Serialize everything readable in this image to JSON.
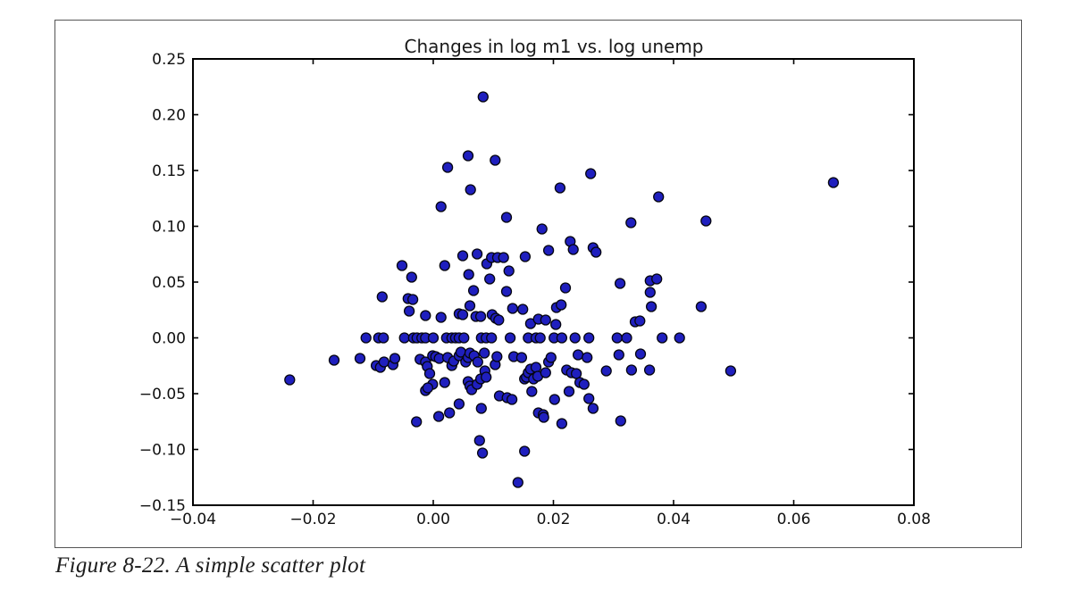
{
  "figure": {
    "caption": "Figure 8-22. A simple scatter plot"
  },
  "chart_data": {
    "type": "scatter",
    "title": "Changes in log m1 vs. log unemp",
    "xlabel": "",
    "ylabel": "",
    "xlim": [
      -0.04,
      0.08
    ],
    "ylim": [
      -0.15,
      0.25
    ],
    "xticks": [
      -0.04,
      -0.02,
      0.0,
      0.02,
      0.04,
      0.06,
      0.08
    ],
    "xtick_labels": [
      "−0.04",
      "−0.02",
      "0.00",
      "0.02",
      "0.04",
      "0.06",
      "0.08"
    ],
    "yticks": [
      0.25,
      0.2,
      0.15,
      0.1,
      0.05,
      0.0,
      -0.05,
      -0.1,
      -0.15
    ],
    "ytick_labels": [
      "0.25",
      "0.20",
      "0.15",
      "0.10",
      "0.05",
      "0.00",
      "−0.05",
      "−0.10",
      "−0.15"
    ],
    "grid": false,
    "legend": null,
    "point_color": "#1f1fbe",
    "point_edge_color": "#050510",
    "point_radius_px": 5.5,
    "points": [
      [
        0.0083,
        0.216
      ],
      [
        0.0058,
        0.1632
      ],
      [
        0.0103,
        0.1592
      ],
      [
        0.0024,
        0.1528
      ],
      [
        0.0262,
        0.1472
      ],
      [
        0.0211,
        0.1344
      ],
      [
        0.0062,
        0.1328
      ],
      [
        0.0375,
        0.1264
      ],
      [
        0.0013,
        0.1176
      ],
      [
        0.0122,
        0.108
      ],
      [
        0.0329,
        0.1032
      ],
      [
        0.0181,
        0.0976
      ],
      [
        0.0666,
        0.1392
      ],
      [
        0.0454,
        0.1048
      ],
      [
        0.0228,
        0.0864
      ],
      [
        0.0233,
        0.0792
      ],
      [
        0.0266,
        0.0808
      ],
      [
        0.0271,
        0.0768
      ],
      [
        0.0192,
        0.0784
      ],
      [
        0.0049,
        0.0736
      ],
      [
        0.0073,
        0.0752
      ],
      [
        0.0089,
        0.0664
      ],
      [
        0.0097,
        0.072
      ],
      [
        0.0107,
        0.072
      ],
      [
        0.0117,
        0.072
      ],
      [
        0.0153,
        0.0728
      ],
      [
        -0.0052,
        0.0648
      ],
      [
        0.0019,
        0.0648
      ],
      [
        0.0059,
        0.0568
      ],
      [
        0.0126,
        0.06
      ],
      [
        -0.0036,
        0.0544
      ],
      [
        0.0094,
        0.0528
      ],
      [
        0.0067,
        0.0424
      ],
      [
        0.0122,
        0.0416
      ],
      [
        -0.0085,
        0.0368
      ],
      [
        -0.0042,
        0.0352
      ],
      [
        -0.0034,
        0.0344
      ],
      [
        0.0311,
        0.0488
      ],
      [
        0.022,
        0.0448
      ],
      [
        0.0132,
        0.0264
      ],
      [
        0.0149,
        0.0256
      ],
      [
        -0.004,
        0.024
      ],
      [
        0.0205,
        0.0272
      ],
      [
        0.0213,
        0.0296
      ],
      [
        -0.0013,
        0.02
      ],
      [
        0.0013,
        0.0184
      ],
      [
        0.0043,
        0.0216
      ],
      [
        0.0049,
        0.0208
      ],
      [
        0.0061,
        0.0288
      ],
      [
        0.0071,
        0.0192
      ],
      [
        0.0079,
        0.0192
      ],
      [
        0.0098,
        0.0208
      ],
      [
        0.0104,
        0.0176
      ],
      [
        0.0109,
        0.016
      ],
      [
        0.0162,
        0.0128
      ],
      [
        0.0175,
        0.0168
      ],
      [
        0.0187,
        0.016
      ],
      [
        0.0204,
        0.012
      ],
      [
        0.0336,
        0.0144
      ],
      [
        0.0344,
        0.0152
      ],
      [
        0.0361,
        0.0512
      ],
      [
        0.0372,
        0.0528
      ],
      [
        0.0361,
        0.0408
      ],
      [
        0.0363,
        0.028
      ],
      [
        0.0446,
        0.028
      ],
      [
        -0.0112,
        0.0
      ],
      [
        -0.0091,
        0.0
      ],
      [
        -0.0083,
        0.0
      ],
      [
        -0.0048,
        0.0
      ],
      [
        -0.0033,
        0.0
      ],
      [
        -0.0027,
        0.0
      ],
      [
        -0.0019,
        0.0
      ],
      [
        -0.0013,
        0.0
      ],
      [
        0.0,
        0.0
      ],
      [
        0.0022,
        0.0
      ],
      [
        0.0031,
        0.0
      ],
      [
        0.0037,
        0.0
      ],
      [
        0.0043,
        0.0
      ],
      [
        0.0051,
        0.0
      ],
      [
        0.008,
        0.0
      ],
      [
        0.0088,
        0.0
      ],
      [
        0.0097,
        0.0
      ],
      [
        0.0128,
        0.0
      ],
      [
        0.0158,
        0.0
      ],
      [
        0.0171,
        0.0
      ],
      [
        0.0178,
        0.0
      ],
      [
        0.0201,
        0.0
      ],
      [
        0.0214,
        0.0
      ],
      [
        0.0236,
        0.0
      ],
      [
        0.0259,
        0.0
      ],
      [
        0.0306,
        0.0
      ],
      [
        0.0322,
        0.0
      ],
      [
        0.0381,
        0.0
      ],
      [
        0.041,
        0.0
      ],
      [
        -0.0122,
        -0.0184
      ],
      [
        -0.0095,
        -0.0248
      ],
      [
        -0.0088,
        -0.0264
      ],
      [
        -0.0082,
        -0.0216
      ],
      [
        -0.0067,
        -0.024
      ],
      [
        -0.0064,
        -0.0184
      ],
      [
        -0.0022,
        -0.0192
      ],
      [
        -0.0013,
        -0.0216
      ],
      [
        -0.001,
        -0.0256
      ],
      [
        -0.0001,
        -0.016
      ],
      [
        0.0004,
        -0.0168
      ],
      [
        0.001,
        -0.0184
      ],
      [
        -0.0006,
        -0.032
      ],
      [
        -0.0001,
        -0.0416
      ],
      [
        -0.0013,
        -0.0472
      ],
      [
        -0.0009,
        -0.0448
      ],
      [
        0.0019,
        -0.04
      ],
      [
        0.0024,
        -0.0176
      ],
      [
        0.0031,
        -0.0248
      ],
      [
        0.0034,
        -0.0208
      ],
      [
        0.0043,
        -0.016
      ],
      [
        0.0046,
        -0.0128
      ],
      [
        0.0054,
        -0.0216
      ],
      [
        0.0058,
        -0.0176
      ],
      [
        0.0061,
        -0.0136
      ],
      [
        0.0068,
        -0.016
      ],
      [
        0.0074,
        -0.0216
      ],
      [
        0.0058,
        -0.0392
      ],
      [
        0.0061,
        -0.0432
      ],
      [
        0.0064,
        -0.0464
      ],
      [
        0.0073,
        -0.0416
      ],
      [
        0.0079,
        -0.0368
      ],
      [
        0.0085,
        -0.0136
      ],
      [
        0.0086,
        -0.0296
      ],
      [
        0.0088,
        -0.0352
      ],
      [
        0.0103,
        -0.024
      ],
      [
        0.0106,
        -0.0168
      ],
      [
        0.011,
        -0.052
      ],
      [
        0.0123,
        -0.0536
      ],
      [
        0.0131,
        -0.0552
      ],
      [
        0.0134,
        -0.0168
      ],
      [
        0.0147,
        -0.0176
      ],
      [
        0.0152,
        -0.0368
      ],
      [
        0.0155,
        -0.0352
      ],
      [
        0.0158,
        -0.0312
      ],
      [
        0.0162,
        -0.028
      ],
      [
        0.0164,
        -0.048
      ],
      [
        0.0167,
        -0.0368
      ],
      [
        0.0171,
        -0.0264
      ],
      [
        0.0174,
        -0.0344
      ],
      [
        0.0175,
        -0.0672
      ],
      [
        0.0183,
        -0.0688
      ],
      [
        0.0184,
        -0.0712
      ],
      [
        0.0187,
        -0.0312
      ],
      [
        0.0192,
        -0.0216
      ],
      [
        0.0196,
        -0.0176
      ],
      [
        0.0202,
        -0.0552
      ],
      [
        0.0222,
        -0.0288
      ],
      [
        0.0226,
        -0.048
      ],
      [
        0.023,
        -0.0312
      ],
      [
        0.0238,
        -0.032
      ],
      [
        0.0241,
        -0.0152
      ],
      [
        0.0244,
        -0.04
      ],
      [
        0.0251,
        -0.0416
      ],
      [
        0.0256,
        -0.0176
      ],
      [
        0.0259,
        -0.0544
      ],
      [
        0.0266,
        -0.0632
      ],
      [
        0.0288,
        -0.0296
      ],
      [
        0.0309,
        -0.0152
      ],
      [
        -0.0028,
        -0.0752
      ],
      [
        0.0009,
        -0.0704
      ],
      [
        0.0027,
        -0.0672
      ],
      [
        0.0043,
        -0.0592
      ],
      [
        0.008,
        -0.0632
      ],
      [
        0.0214,
        -0.0768
      ],
      [
        0.0312,
        -0.0744
      ],
      [
        -0.0165,
        -0.02
      ],
      [
        -0.0239,
        -0.0376
      ],
      [
        0.0345,
        -0.0144
      ],
      [
        0.033,
        -0.0288
      ],
      [
        0.036,
        -0.0288
      ],
      [
        0.0495,
        -0.0296
      ],
      [
        0.0077,
        -0.092
      ],
      [
        0.0082,
        -0.1032
      ],
      [
        0.0152,
        -0.1016
      ],
      [
        0.0141,
        -0.1296
      ]
    ]
  }
}
